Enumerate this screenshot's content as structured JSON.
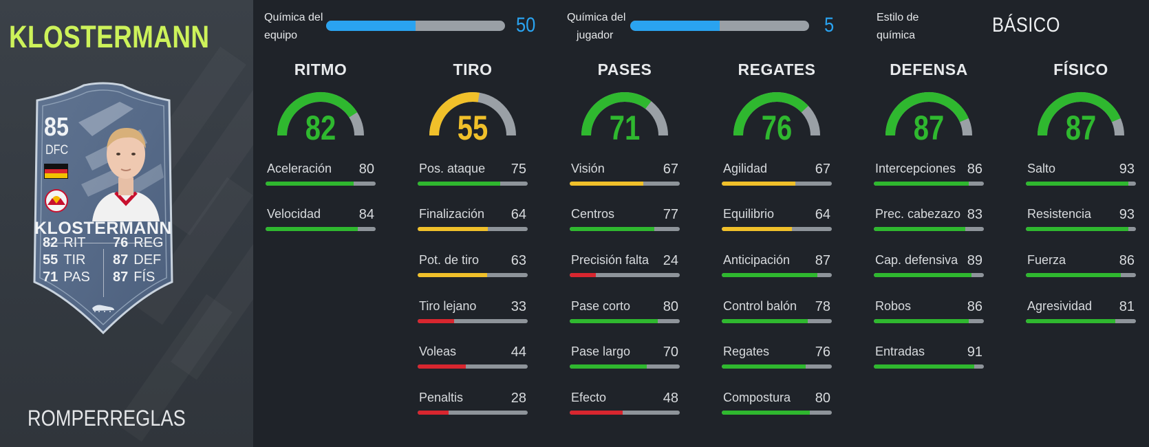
{
  "player": {
    "name": "KLOSTERMANN",
    "card_name": "KLOSTERMANN",
    "rating": "85",
    "position": "DFC",
    "version": "ROMPERREGLAS",
    "card_stats_left": [
      {
        "value": "82",
        "abbr": "RIT"
      },
      {
        "value": "55",
        "abbr": "TIR"
      },
      {
        "value": "71",
        "abbr": "PAS"
      }
    ],
    "card_stats_right": [
      {
        "value": "76",
        "abbr": "REG"
      },
      {
        "value": "87",
        "abbr": "DEF"
      },
      {
        "value": "87",
        "abbr": "FÍS"
      }
    ]
  },
  "chemistry": {
    "team_label_1": "Química del",
    "team_label_2": "equipo",
    "team_value": 50,
    "team_fraction": 0.5,
    "player_label_1": "Química del",
    "player_label_2": "jugador",
    "player_value": 5,
    "player_fraction": 0.5,
    "style_label_1": "Estilo de",
    "style_label_2": "química",
    "style_value": "BÁSICO"
  },
  "colors": {
    "green": "#2fb82f",
    "yellow": "#f0c02a",
    "red": "#d8262f",
    "accent_name": "#cdf25a",
    "chem_blue": "#2aa3f0"
  },
  "categories": [
    {
      "name": "RITMO",
      "value": 82,
      "stats": [
        {
          "label": "Aceleración",
          "value": 80
        },
        {
          "label": "Velocidad",
          "value": 84
        }
      ]
    },
    {
      "name": "TIRO",
      "value": 55,
      "stats": [
        {
          "label": "Pos. ataque",
          "value": 75
        },
        {
          "label": "Finalización",
          "value": 64
        },
        {
          "label": "Pot. de tiro",
          "value": 63
        },
        {
          "label": "Tiro lejano",
          "value": 33
        },
        {
          "label": "Voleas",
          "value": 44
        },
        {
          "label": "Penaltis",
          "value": 28
        }
      ]
    },
    {
      "name": "PASES",
      "value": 71,
      "stats": [
        {
          "label": "Visión",
          "value": 67
        },
        {
          "label": "Centros",
          "value": 77
        },
        {
          "label": "Precisión falta",
          "value": 24
        },
        {
          "label": "Pase corto",
          "value": 80
        },
        {
          "label": "Pase largo",
          "value": 70
        },
        {
          "label": "Efecto",
          "value": 48
        }
      ]
    },
    {
      "name": "REGATES",
      "value": 76,
      "stats": [
        {
          "label": "Agilidad",
          "value": 67
        },
        {
          "label": "Equilibrio",
          "value": 64
        },
        {
          "label": "Anticipación",
          "value": 87
        },
        {
          "label": "Control balón",
          "value": 78
        },
        {
          "label": "Regates",
          "value": 76
        },
        {
          "label": "Compostura",
          "value": 80
        }
      ]
    },
    {
      "name": "DEFENSA",
      "value": 87,
      "stats": [
        {
          "label": "Intercepciones",
          "value": 86
        },
        {
          "label": "Prec. cabezazo",
          "value": 83
        },
        {
          "label": "Cap. defensiva",
          "value": 89
        },
        {
          "label": "Robos",
          "value": 86
        },
        {
          "label": "Entradas",
          "value": 91
        }
      ]
    },
    {
      "name": "FÍSICO",
      "value": 87,
      "stats": [
        {
          "label": "Salto",
          "value": 93
        },
        {
          "label": "Resistencia",
          "value": 93
        },
        {
          "label": "Fuerza",
          "value": 86
        },
        {
          "label": "Agresividad",
          "value": 81
        }
      ]
    }
  ]
}
